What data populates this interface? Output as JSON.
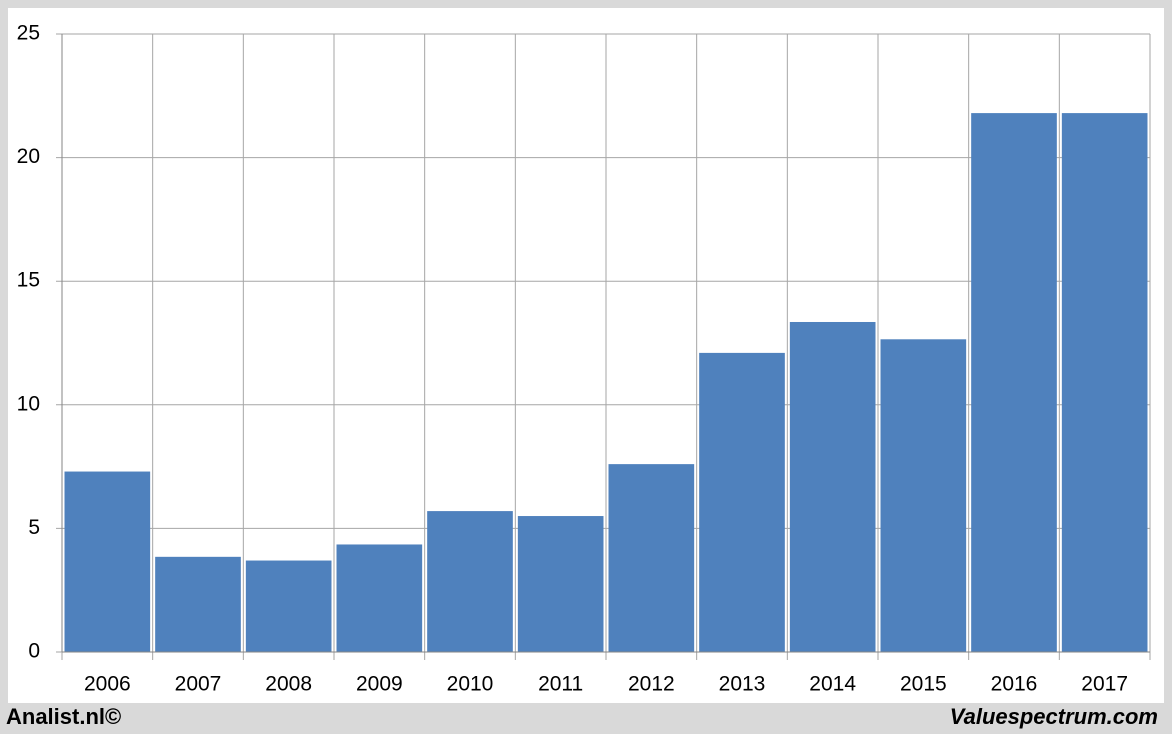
{
  "chart_data": {
    "type": "bar",
    "categories": [
      "2006",
      "2007",
      "2008",
      "2009",
      "2010",
      "2011",
      "2012",
      "2013",
      "2014",
      "2015",
      "2016",
      "2017"
    ],
    "values": [
      7.3,
      3.85,
      3.7,
      4.35,
      5.7,
      5.5,
      7.6,
      12.1,
      13.35,
      12.65,
      21.8,
      21.8
    ],
    "color": "#4f81bd",
    "ylim": [
      0,
      25
    ],
    "yticks": [
      0,
      5,
      10,
      15,
      20,
      25
    ],
    "grid": true,
    "annotations": [
      "Analist.nl©",
      "Valuespectrum.com"
    ]
  }
}
